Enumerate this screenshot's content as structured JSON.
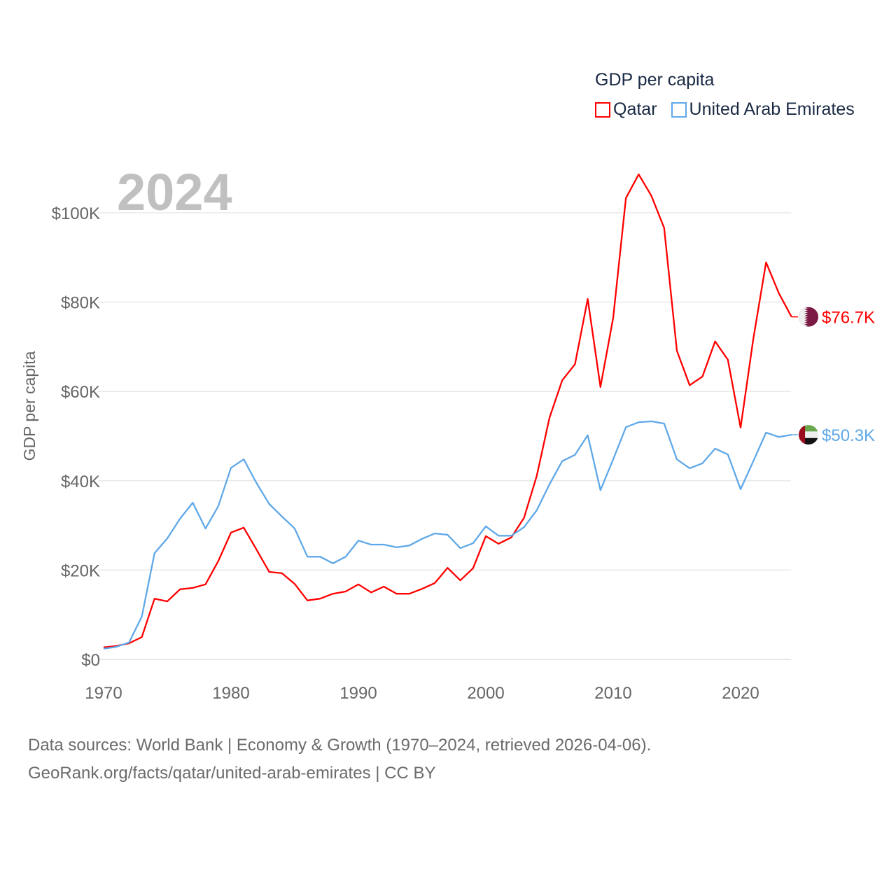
{
  "chart_data": {
    "type": "line",
    "title": "GDP per capita",
    "year_label": "2024",
    "xlabel": "",
    "ylabel": "GDP per capita",
    "xlim": [
      1970,
      2024
    ],
    "ylim": [
      0,
      110
    ],
    "x_ticks": [
      1970,
      1980,
      1990,
      2000,
      2010,
      2020
    ],
    "x_tick_labels": [
      "1970",
      "1980",
      "1990",
      "2000",
      "2010",
      "2020"
    ],
    "y_ticks": [
      0,
      20,
      40,
      60,
      80,
      100
    ],
    "y_tick_labels": [
      "$0",
      "$20K",
      "$40K",
      "$60K",
      "$80K",
      "$100K"
    ],
    "y_units": "thousand USD",
    "grid": true,
    "legend_placement": "top-right",
    "x": [
      1970,
      1971,
      1972,
      1973,
      1974,
      1975,
      1976,
      1977,
      1978,
      1979,
      1980,
      1981,
      1982,
      1983,
      1984,
      1985,
      1986,
      1987,
      1988,
      1989,
      1990,
      1991,
      1992,
      1993,
      1994,
      1995,
      1996,
      1997,
      1998,
      1999,
      2000,
      2001,
      2002,
      2003,
      2004,
      2005,
      2006,
      2007,
      2008,
      2009,
      2010,
      2011,
      2012,
      2013,
      2014,
      2015,
      2016,
      2017,
      2018,
      2019,
      2020,
      2021,
      2022,
      2023,
      2024
    ],
    "series": [
      {
        "name": "Qatar",
        "color": "#ff0000",
        "end_label": "$76.7K",
        "flag": "qatar-flag",
        "values": [
          2.7,
          3.0,
          3.6,
          5.0,
          13.6,
          13.0,
          15.7,
          16.0,
          16.8,
          22.0,
          28.4,
          29.5,
          24.6,
          19.6,
          19.3,
          16.9,
          13.2,
          13.6,
          14.7,
          15.2,
          16.8,
          15.0,
          16.3,
          14.7,
          14.7,
          15.8,
          17.1,
          20.5,
          17.7,
          20.4,
          27.6,
          25.9,
          27.3,
          31.7,
          41.1,
          54.1,
          62.5,
          66.1,
          80.7,
          61.0,
          76.5,
          103.3,
          108.6,
          103.8,
          96.6,
          69.1,
          61.4,
          63.3,
          71.2,
          67.1,
          51.9,
          71.8,
          88.9,
          82.0,
          76.7
        ]
      },
      {
        "name": "United Arab Emirates",
        "color": "#5fa8e8",
        "end_label": "$50.3K",
        "flag": "uae-flag",
        "values": [
          2.4,
          2.8,
          3.8,
          9.6,
          23.8,
          27.1,
          31.5,
          35.1,
          29.3,
          34.3,
          42.9,
          44.8,
          39.5,
          34.8,
          32.0,
          29.3,
          23.0,
          23.0,
          21.5,
          23.0,
          26.6,
          25.7,
          25.7,
          25.1,
          25.5,
          27.0,
          28.2,
          27.9,
          24.9,
          26.0,
          29.8,
          27.7,
          27.7,
          29.6,
          33.4,
          39.2,
          44.4,
          45.8,
          50.2,
          37.9,
          44.8,
          52.0,
          53.1,
          53.3,
          52.8,
          44.8,
          42.8,
          43.9,
          47.2,
          45.9,
          38.1,
          44.4,
          50.8,
          49.8,
          50.3
        ]
      }
    ]
  },
  "source": {
    "line1": "Data sources: World Bank | Economy & Growth (1970–2024, retrieved 2026-04-06).",
    "line2": "GeoRank.org/facts/qatar/united-arab-emirates | CC BY"
  }
}
